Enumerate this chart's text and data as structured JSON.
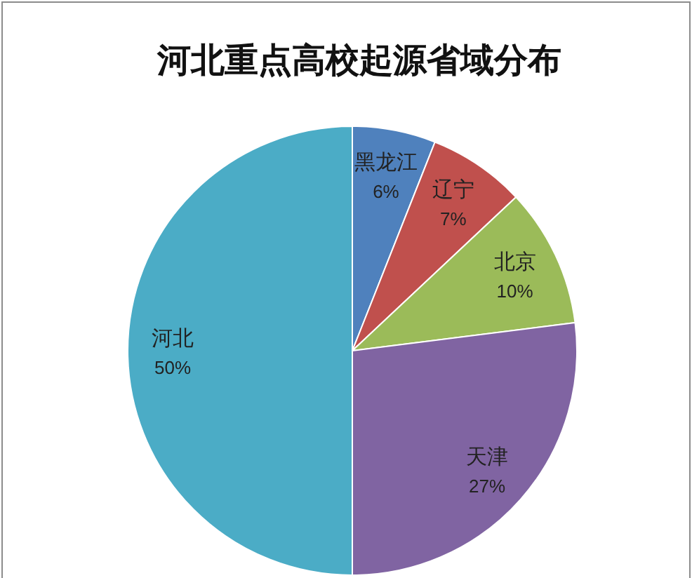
{
  "chart_data": {
    "type": "pie",
    "title": "河北重点高校起源省域分布",
    "categories": [
      "黑龙江",
      "辽宁",
      "北京",
      "天津",
      "河北"
    ],
    "values": [
      6,
      7,
      10,
      27,
      50
    ],
    "value_labels": [
      "6%",
      "7%",
      "10%",
      "27%",
      "50%"
    ],
    "colors": [
      "#4f81bd",
      "#c0504d",
      "#9bbb59",
      "#8064a2",
      "#4bacc6"
    ]
  }
}
